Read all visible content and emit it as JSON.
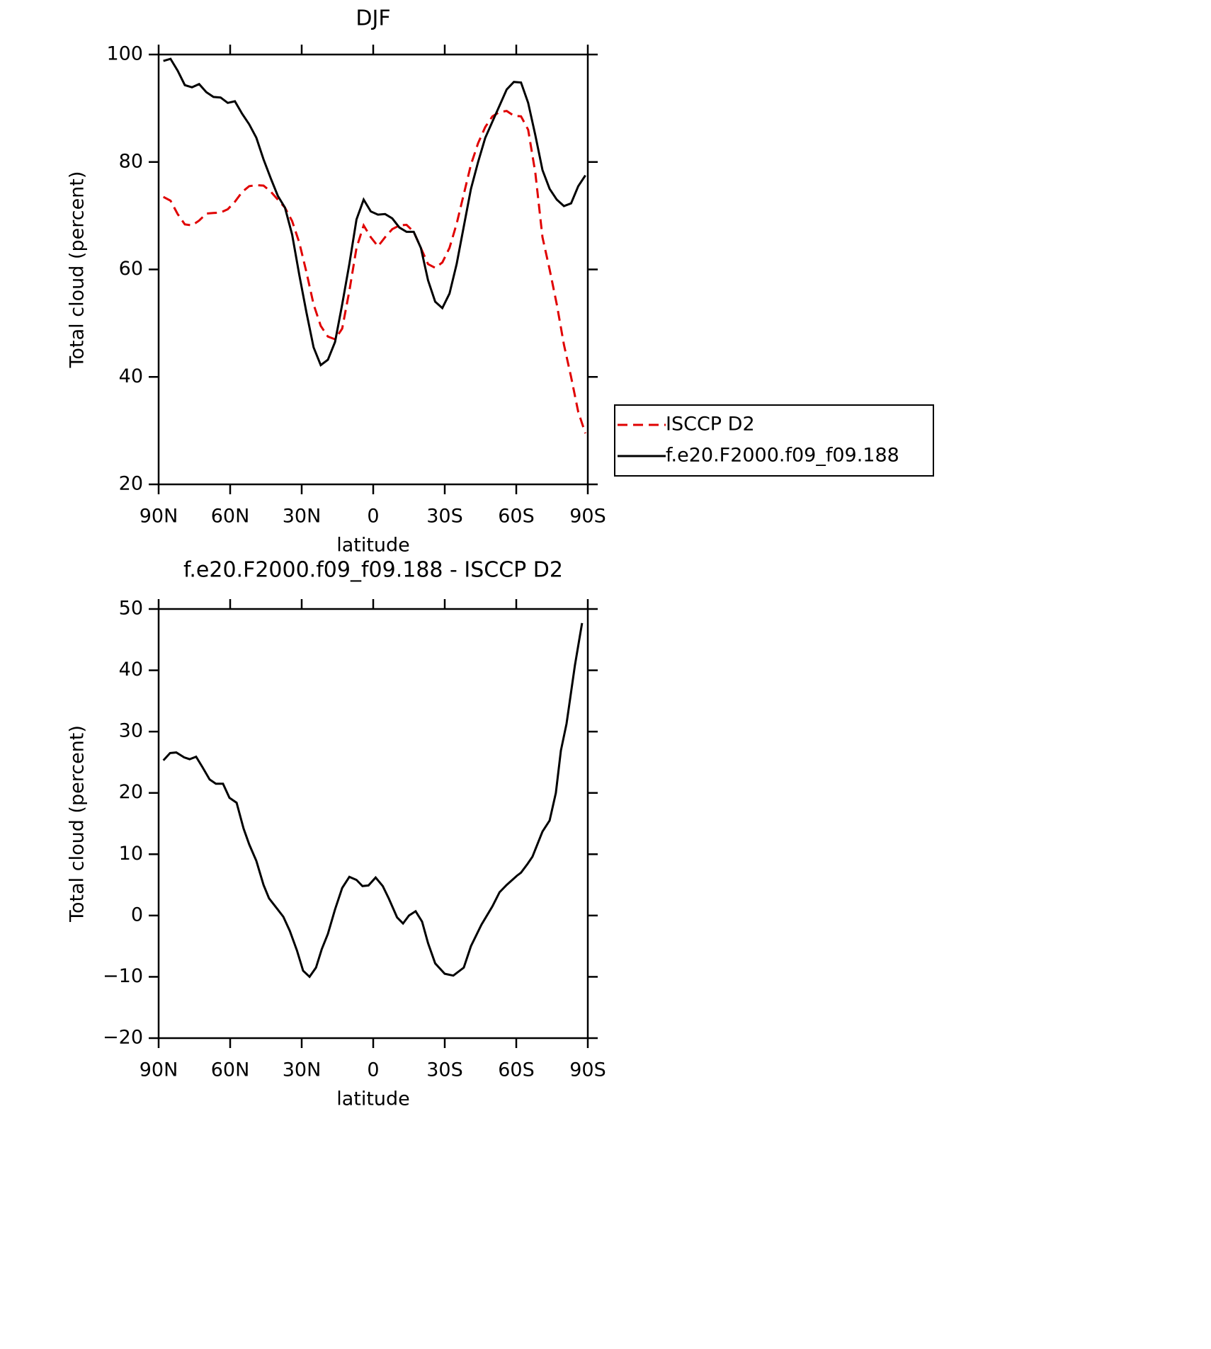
{
  "chart_data": [
    {
      "type": "line",
      "title": "DJF",
      "x_label": "latitude",
      "y_label": "Total cloud (percent)",
      "xlim": [
        90,
        -90
      ],
      "ylim": [
        20,
        100
      ],
      "xticks": [
        {
          "value": 90,
          "label": "90N"
        },
        {
          "value": 60,
          "label": "60N"
        },
        {
          "value": 30,
          "label": "30N"
        },
        0,
        {
          "value": -30,
          "label": "30S"
        },
        {
          "value": -60,
          "label": "60S"
        },
        {
          "value": -90,
          "label": "90S"
        }
      ],
      "yticks": [
        20,
        40,
        60,
        80,
        100
      ],
      "legend": "right",
      "x": [
        88,
        85,
        82,
        79,
        76,
        73,
        70,
        67,
        64,
        61,
        58,
        55,
        52,
        49,
        46,
        43,
        40,
        37,
        34,
        31,
        28,
        25,
        22,
        19,
        16,
        13,
        10,
        7,
        4,
        1,
        -2,
        -5,
        -8,
        -11,
        -14,
        -17,
        -20,
        -23,
        -26,
        -29,
        -32,
        -35,
        -38,
        -41,
        -44,
        -47,
        -50,
        -53,
        -56,
        -59,
        -62,
        -65,
        -68,
        -71,
        -74,
        -77,
        -80,
        -83,
        -86,
        -89
      ],
      "series": [
        {
          "name": "ISCCP D2",
          "color": "#e00000",
          "style": "dashed",
          "values": [
            73.5,
            72.8,
            70.3,
            68.4,
            68.2,
            69.1,
            70.4,
            70.5,
            70.6,
            71.2,
            72.6,
            74.4,
            75.5,
            75.7,
            75.6,
            74.5,
            73,
            71.5,
            69,
            65,
            59.5,
            53.5,
            49.5,
            47.5,
            47,
            49,
            56,
            64,
            68.2,
            66,
            64.3,
            66,
            67.5,
            68.2,
            68.3,
            67,
            64,
            61,
            60.3,
            61.3,
            64,
            68.5,
            74,
            79.5,
            83.5,
            86.5,
            88.5,
            89.3,
            89.5,
            88.6,
            88.5,
            86,
            78,
            66,
            60,
            53.5,
            46,
            40,
            33.5,
            29.5
          ]
        },
        {
          "name": "f.e20.F2000.f09_f09.188",
          "color": "#000000",
          "style": "solid",
          "values": [
            98.8,
            99.2,
            97,
            94.3,
            93.9,
            94.5,
            93,
            92.1,
            92,
            91,
            91.3,
            89,
            87,
            84.5,
            80.5,
            77,
            73.7,
            71.5,
            66.5,
            59,
            52,
            45.5,
            42.2,
            43.2,
            46.5,
            53.5,
            61,
            69.3,
            73,
            70.8,
            70.2,
            70.3,
            69.5,
            67.8,
            67,
            67,
            64,
            58,
            54,
            52.8,
            55.5,
            61,
            68,
            75,
            80,
            84.5,
            87.5,
            90.5,
            93.5,
            94.9,
            94.8,
            91,
            85,
            78.5,
            75,
            73,
            71.8,
            72.3,
            75.5,
            77.5
          ]
        }
      ]
    },
    {
      "type": "line",
      "title": "f.e20.F2000.f09_f09.188 - ISCCP D2",
      "x_label": "latitude",
      "y_label": "Total cloud (percent)",
      "xlim": [
        90,
        -90
      ],
      "ylim": [
        -20,
        50
      ],
      "xticks": [
        {
          "value": 90,
          "label": "90N"
        },
        {
          "value": 60,
          "label": "60N"
        },
        {
          "value": 30,
          "label": "30N"
        },
        0,
        {
          "value": -30,
          "label": "30S"
        },
        {
          "value": -60,
          "label": "60S"
        },
        {
          "value": -90,
          "label": "90S"
        }
      ],
      "yticks": [
        {
          "value": -20,
          "label": "−20"
        },
        {
          "value": -10,
          "label": "−10"
        },
        0,
        10,
        20,
        30,
        40,
        50
      ],
      "x": [
        88,
        85.2,
        82.6,
        79.3,
        77,
        74.3,
        71.6,
        68.6,
        66,
        63,
        60.3,
        57.3,
        54.4,
        52,
        49,
        46,
        43.7,
        40.7,
        37.7,
        35,
        32,
        29.4,
        26.7,
        24,
        21.6,
        19,
        16,
        13,
        10,
        7,
        4.5,
        2,
        -1,
        -4,
        -6.5,
        -10,
        -12.5,
        -15,
        -17.8,
        -20.5,
        -23,
        -26,
        -30,
        -33.6,
        -38,
        -41,
        -45.4,
        -50,
        -53,
        -56,
        -60.3,
        -62,
        -64.7,
        -66.8,
        -71,
        -74,
        -76.6,
        -78.7,
        -81.1,
        -84.6,
        -87.6
      ],
      "series": [
        {
          "color": "#000000",
          "style": "solid",
          "values": [
            25.3,
            26.5,
            26.6,
            25.8,
            25.5,
            25.9,
            24.2,
            22.2,
            21.5,
            21.5,
            19.2,
            18.4,
            14.2,
            11.6,
            8.9,
            5,
            2.8,
            1.3,
            -0.2,
            -2.5,
            -5.7,
            -9,
            -10,
            -8.5,
            -5.5,
            -3,
            1,
            4.5,
            6.3,
            5.8,
            4.8,
            4.9,
            6.2,
            4.8,
            2.8,
            -0.3,
            -1.3,
            0,
            0.7,
            -1,
            -4.5,
            -7.8,
            -9.5,
            -9.8,
            -8.5,
            -5,
            -1.5,
            1.5,
            3.8,
            5,
            6.5,
            7,
            8.4,
            9.6,
            13.7,
            15.5,
            20,
            26.9,
            31.3,
            40.8,
            47.7
          ]
        }
      ]
    }
  ]
}
